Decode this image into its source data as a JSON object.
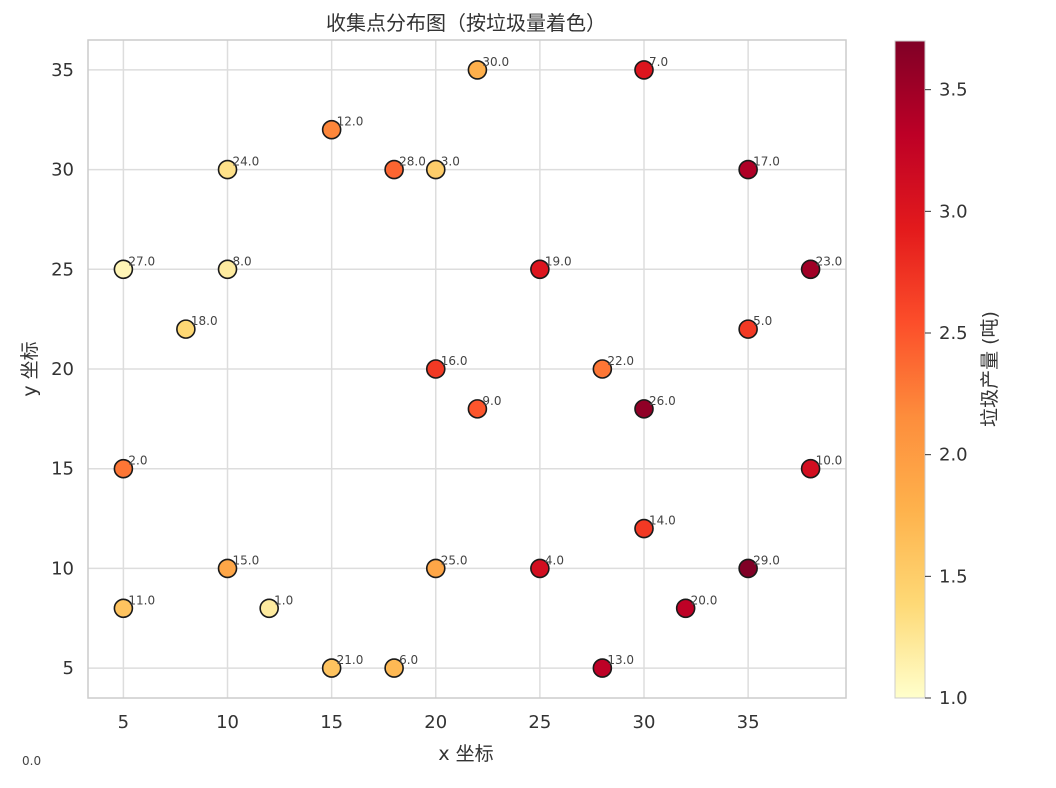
{
  "chart_data": {
    "type": "scatter",
    "title": "收集点分布图（按垃圾量着色）",
    "xlabel": "x 坐标",
    "ylabel": "y 坐标",
    "xlim": [
      3.3,
      39.7
    ],
    "ylim": [
      3.5,
      36.5
    ],
    "xticks": [
      5,
      10,
      15,
      20,
      25,
      30,
      35
    ],
    "yticks": [
      5,
      10,
      15,
      20,
      25,
      30,
      35
    ],
    "grid": true,
    "colormap": [
      "#ffffcc",
      "#fed976",
      "#feb24c",
      "#fd8d3c",
      "#fc4e2a",
      "#e31a1c",
      "#bd0026",
      "#800026"
    ],
    "colorbar": {
      "label": "垃圾产量 (吨)",
      "range": [
        1.0,
        3.7
      ],
      "ticks": [
        1.0,
        1.5,
        2.0,
        2.5,
        3.0,
        3.5
      ],
      "tick_labels": [
        "1.0",
        "1.5",
        "2.0",
        "2.5",
        "3.0",
        "3.5"
      ]
    },
    "corner_label": "0.0",
    "points": [
      {
        "label": "1.0",
        "x": 12,
        "y": 8,
        "value": 1.2
      },
      {
        "label": "2.0",
        "x": 5,
        "y": 15,
        "value": 2.3
      },
      {
        "label": "3.0",
        "x": 20,
        "y": 30,
        "value": 1.5
      },
      {
        "label": "4.0",
        "x": 25,
        "y": 10,
        "value": 3.1
      },
      {
        "label": "5.0",
        "x": 35,
        "y": 22,
        "value": 2.7
      },
      {
        "label": "6.0",
        "x": 18,
        "y": 5,
        "value": 1.7
      },
      {
        "label": "7.0",
        "x": 30,
        "y": 35,
        "value": 3.0
      },
      {
        "label": "8.0",
        "x": 10,
        "y": 25,
        "value": 1.2
      },
      {
        "label": "9.0",
        "x": 22,
        "y": 18,
        "value": 2.5
      },
      {
        "label": "10.0",
        "x": 38,
        "y": 15,
        "value": 3.1
      },
      {
        "label": "11.0",
        "x": 5,
        "y": 8,
        "value": 1.6
      },
      {
        "label": "12.0",
        "x": 15,
        "y": 32,
        "value": 2.2
      },
      {
        "label": "13.0",
        "x": 28,
        "y": 5,
        "value": 3.3
      },
      {
        "label": "14.0",
        "x": 30,
        "y": 12,
        "value": 2.7
      },
      {
        "label": "15.0",
        "x": 10,
        "y": 10,
        "value": 1.9
      },
      {
        "label": "16.0",
        "x": 20,
        "y": 20,
        "value": 2.7
      },
      {
        "label": "17.0",
        "x": 35,
        "y": 30,
        "value": 3.4
      },
      {
        "label": "18.0",
        "x": 8,
        "y": 22,
        "value": 1.4
      },
      {
        "label": "19.0",
        "x": 25,
        "y": 25,
        "value": 3.0
      },
      {
        "label": "20.0",
        "x": 32,
        "y": 8,
        "value": 3.3
      },
      {
        "label": "21.0",
        "x": 15,
        "y": 5,
        "value": 1.6
      },
      {
        "label": "22.0",
        "x": 28,
        "y": 20,
        "value": 2.3
      },
      {
        "label": "23.0",
        "x": 38,
        "y": 25,
        "value": 3.5
      },
      {
        "label": "24.0",
        "x": 10,
        "y": 30,
        "value": 1.3
      },
      {
        "label": "25.0",
        "x": 20,
        "y": 10,
        "value": 1.9
      },
      {
        "label": "26.0",
        "x": 30,
        "y": 18,
        "value": 3.6
      },
      {
        "label": "27.0",
        "x": 5,
        "y": 25,
        "value": 1.1
      },
      {
        "label": "28.0",
        "x": 18,
        "y": 30,
        "value": 2.4
      },
      {
        "label": "29.0",
        "x": 35,
        "y": 10,
        "value": 3.7
      },
      {
        "label": "30.0",
        "x": 22,
        "y": 35,
        "value": 1.8
      }
    ]
  }
}
